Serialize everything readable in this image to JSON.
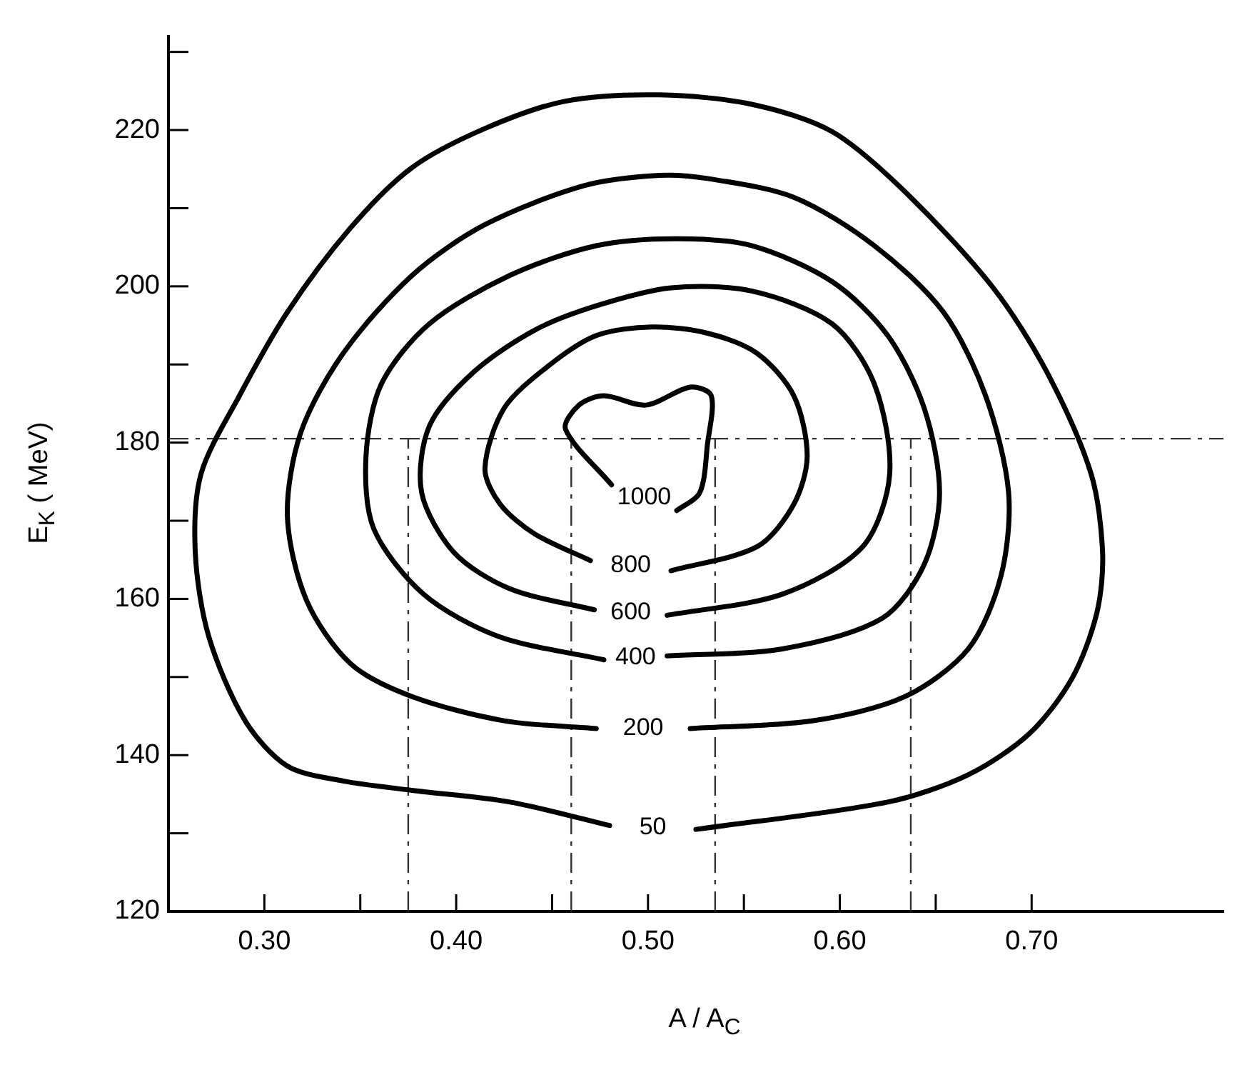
{
  "chart_data": {
    "type": "line",
    "xlabel": "A / A$_{C}$",
    "ylabel": "E$_{K}$  ( MeV)",
    "xlim": [
      0.25,
      0.8
    ],
    "ylim": [
      120,
      232
    ],
    "xticks": [
      {
        "value": 0.3,
        "label": "0.30"
      },
      {
        "value": 0.35,
        "label": null
      },
      {
        "value": 0.4,
        "label": "0.40"
      },
      {
        "value": 0.45,
        "label": null
      },
      {
        "value": 0.5,
        "label": "0.50"
      },
      {
        "value": 0.55,
        "label": null
      },
      {
        "value": 0.6,
        "label": "0.60"
      },
      {
        "value": 0.65,
        "label": null
      },
      {
        "value": 0.7,
        "label": "0.70"
      }
    ],
    "yticks": [
      120,
      {
        "value": 130,
        "label": null
      },
      140,
      {
        "value": 150,
        "label": null
      },
      160,
      {
        "value": 170,
        "label": null
      },
      180,
      {
        "value": 190,
        "label": null
      },
      200,
      {
        "value": 210,
        "label": null
      },
      220,
      {
        "value": 230,
        "label": null
      }
    ],
    "series": [
      {
        "name": "50",
        "color": "#000000",
        "x": [
          0.525,
          0.625,
          0.667,
          0.699,
          0.721,
          0.734,
          0.737,
          0.731,
          0.708,
          0.68,
          0.634,
          0.596,
          0.554,
          0.506,
          0.457,
          0.415,
          0.377,
          0.345,
          0.312,
          0.287,
          0.267,
          0.264,
          0.271,
          0.29,
          0.312,
          0.341,
          0.377,
          0.428,
          0.48
        ],
        "values": [
          130.5,
          134.0,
          137.5,
          142.8,
          149.8,
          158.2,
          165.9,
          176.0,
          189.0,
          199.8,
          212.1,
          219.8,
          223.3,
          224.5,
          223.7,
          220.2,
          215.2,
          207.5,
          196.7,
          186.0,
          176.0,
          165.9,
          155.2,
          144.4,
          138.6,
          136.7,
          135.5,
          134.0,
          131.0
        ]
      },
      {
        "name": "200",
        "color": "#000000",
        "x": [
          0.522,
          0.586,
          0.634,
          0.667,
          0.684,
          0.688,
          0.676,
          0.654,
          0.618,
          0.576,
          0.531,
          0.506,
          0.467,
          0.415,
          0.377,
          0.341,
          0.319,
          0.312,
          0.322,
          0.345,
          0.377,
          0.425,
          0.473
        ],
        "values": [
          143.4,
          144.4,
          147.5,
          153.6,
          162.9,
          173.6,
          186.0,
          196.7,
          205.2,
          211.4,
          213.8,
          214.2,
          212.9,
          207.9,
          201.4,
          191.4,
          181.3,
          170.6,
          159.8,
          151.7,
          147.5,
          144.4,
          143.4
        ]
      },
      {
        "name": "400",
        "color": "#000000",
        "x": [
          0.51,
          0.57,
          0.622,
          0.644,
          0.652,
          0.644,
          0.625,
          0.596,
          0.554,
          0.515,
          0.473,
          0.428,
          0.386,
          0.361,
          0.353,
          0.357,
          0.383,
          0.422,
          0.477
        ],
        "values": [
          152.7,
          153.6,
          157.5,
          164.4,
          173.6,
          184.4,
          193.7,
          200.6,
          205.2,
          206.1,
          205.2,
          201.4,
          195.2,
          187.5,
          178.3,
          169.0,
          160.6,
          155.2,
          152.2
        ]
      },
      {
        "name": "600",
        "color": "#000000",
        "x": [
          0.51,
          0.57,
          0.612,
          0.626,
          0.618,
          0.596,
          0.554,
          0.512,
          0.473,
          0.441,
          0.409,
          0.386,
          0.382,
          0.399,
          0.428,
          0.472
        ],
        "values": [
          157.9,
          160.6,
          166.7,
          176.0,
          187.5,
          195.2,
          199.4,
          199.8,
          197.5,
          194.4,
          189.0,
          182.1,
          173.6,
          165.9,
          161.3,
          158.6
        ]
      },
      {
        "name": "800",
        "color": "#000000",
        "x": [
          0.512,
          0.557,
          0.576,
          0.583,
          0.576,
          0.557,
          0.531,
          0.502,
          0.473,
          0.448,
          0.425,
          0.415,
          0.423,
          0.441,
          0.47
        ],
        "values": [
          163.6,
          166.7,
          172.1,
          178.3,
          186.0,
          191.4,
          194.0,
          194.8,
          193.7,
          189.8,
          184.4,
          176.7,
          172.1,
          168.3,
          164.9
        ]
      },
      {
        "name": "1000",
        "color": "#000000",
        "x": [
          0.481,
          0.457,
          0.464,
          0.477,
          0.499,
          0.522,
          0.533,
          0.531,
          0.527,
          0.515
        ],
        "values": [
          174.6,
          181.7,
          184.8,
          186.0,
          184.8,
          187.1,
          186.0,
          179.8,
          173.6,
          171.3
        ]
      }
    ],
    "ref_lines": [
      {
        "axis": "y",
        "value": 180.5,
        "color": "#333333",
        "line_style": "dashed"
      },
      {
        "axis": "x",
        "value": 0.375,
        "color": "#333333",
        "line_style": "dashed"
      },
      {
        "axis": "x",
        "value": 0.46,
        "color": "#333333",
        "line_style": "dashed"
      },
      {
        "axis": "x",
        "value": 0.535,
        "color": "#333333",
        "line_style": "dashed"
      },
      {
        "axis": "x",
        "value": 0.637,
        "color": "#333333",
        "line_style": "dashed"
      }
    ],
    "grid": false,
    "legend": false
  }
}
